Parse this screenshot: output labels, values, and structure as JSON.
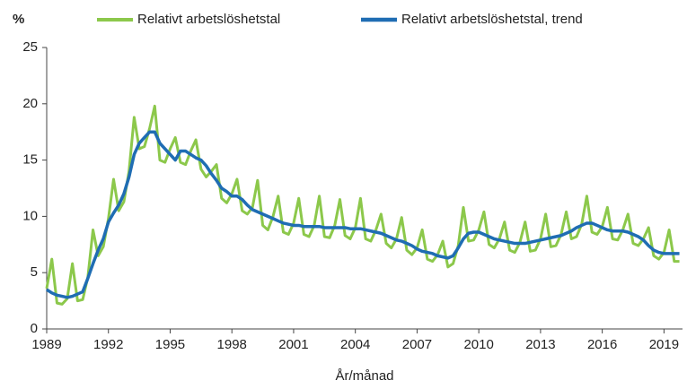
{
  "chart_data": {
    "type": "line",
    "y_label": "%",
    "x_label": "År/månad",
    "x": [
      1989,
      1989.25,
      1989.5,
      1989.75,
      1990,
      1990.25,
      1990.5,
      1990.75,
      1991,
      1991.25,
      1991.5,
      1991.75,
      1992,
      1992.25,
      1992.5,
      1992.75,
      1993,
      1993.25,
      1993.5,
      1993.75,
      1994,
      1994.25,
      1994.5,
      1994.75,
      1995,
      1995.25,
      1995.5,
      1995.75,
      1996,
      1996.25,
      1996.5,
      1996.75,
      1997,
      1997.25,
      1997.5,
      1997.75,
      1998,
      1998.25,
      1998.5,
      1998.75,
      1999,
      1999.25,
      1999.5,
      1999.75,
      2000,
      2000.25,
      2000.5,
      2000.75,
      2001,
      2001.25,
      2001.5,
      2001.75,
      2002,
      2002.25,
      2002.5,
      2002.75,
      2003,
      2003.25,
      2003.5,
      2003.75,
      2004,
      2004.25,
      2004.5,
      2004.75,
      2005,
      2005.25,
      2005.5,
      2005.75,
      2006,
      2006.25,
      2006.5,
      2006.75,
      2007,
      2007.25,
      2007.5,
      2007.75,
      2008,
      2008.25,
      2008.5,
      2008.75,
      2009,
      2009.25,
      2009.5,
      2009.75,
      2010,
      2010.25,
      2010.5,
      2010.75,
      2011,
      2011.25,
      2011.5,
      2011.75,
      2012,
      2012.25,
      2012.5,
      2012.75,
      2013,
      2013.25,
      2013.5,
      2013.75,
      2014,
      2014.25,
      2014.5,
      2014.75,
      2015,
      2015.25,
      2015.5,
      2015.75,
      2016,
      2016.25,
      2016.5,
      2016.75,
      2017,
      2017.25,
      2017.5,
      2017.75,
      2018,
      2018.25,
      2018.5,
      2018.75,
      2019,
      2019.25,
      2019.5,
      2019.75
    ],
    "series": [
      {
        "name": "Relativt arbetslöshetstal",
        "color": "#8cc84b",
        "values": [
          3.6,
          6.2,
          2.3,
          2.2,
          2.7,
          5.8,
          2.5,
          2.6,
          4.6,
          8.8,
          6.5,
          7.3,
          9.8,
          13.3,
          10.5,
          11.3,
          14.0,
          18.8,
          16.0,
          16.2,
          17.8,
          19.8,
          15.0,
          14.8,
          16.0,
          17.0,
          14.8,
          14.6,
          15.8,
          16.8,
          14.2,
          13.5,
          14.0,
          14.6,
          11.6,
          11.2,
          12.0,
          13.3,
          10.5,
          10.2,
          10.8,
          13.2,
          9.2,
          8.8,
          10.0,
          11.8,
          8.6,
          8.4,
          9.4,
          11.6,
          8.4,
          8.2,
          9.2,
          11.8,
          8.2,
          8.1,
          9.2,
          11.5,
          8.3,
          8.0,
          9.0,
          11.6,
          8.0,
          7.8,
          8.8,
          10.2,
          7.6,
          7.2,
          8.0,
          9.9,
          7.0,
          6.6,
          7.2,
          8.8,
          6.2,
          6.0,
          6.6,
          7.8,
          5.5,
          5.8,
          7.4,
          10.8,
          7.8,
          7.9,
          8.8,
          10.4,
          7.5,
          7.2,
          8.0,
          9.5,
          7.0,
          6.8,
          7.7,
          9.5,
          6.9,
          7.0,
          8.0,
          10.2,
          7.3,
          7.4,
          8.4,
          10.4,
          8.0,
          8.2,
          9.3,
          11.8,
          8.6,
          8.4,
          9.1,
          10.8,
          8.0,
          7.9,
          8.8,
          10.2,
          7.6,
          7.4,
          8.0,
          9.0,
          6.5,
          6.2,
          6.8,
          8.8,
          6.0,
          6.0
        ]
      },
      {
        "name": "Relativt arbetslöshetstal, trend",
        "color": "#1f6db3",
        "values": [
          3.5,
          3.2,
          3.0,
          2.9,
          2.8,
          2.9,
          3.1,
          3.3,
          4.5,
          5.8,
          7.0,
          8.0,
          9.5,
          10.3,
          11.0,
          12.0,
          13.5,
          15.5,
          16.5,
          17.0,
          17.5,
          17.5,
          16.5,
          16.0,
          15.5,
          15.0,
          15.8,
          15.8,
          15.5,
          15.2,
          15.0,
          14.5,
          13.8,
          13.2,
          12.5,
          12.2,
          11.8,
          11.8,
          11.5,
          11.0,
          10.6,
          10.4,
          10.2,
          10.0,
          9.8,
          9.6,
          9.4,
          9.3,
          9.2,
          9.2,
          9.1,
          9.1,
          9.1,
          9.1,
          9.0,
          9.0,
          9.0,
          9.0,
          9.0,
          8.9,
          8.9,
          8.9,
          8.8,
          8.7,
          8.6,
          8.5,
          8.3,
          8.1,
          7.9,
          7.8,
          7.6,
          7.4,
          7.1,
          6.9,
          6.8,
          6.7,
          6.5,
          6.4,
          6.3,
          6.5,
          7.2,
          8.0,
          8.5,
          8.6,
          8.6,
          8.4,
          8.2,
          8.0,
          7.9,
          7.8,
          7.7,
          7.6,
          7.6,
          7.6,
          7.7,
          7.8,
          7.9,
          8.0,
          8.1,
          8.2,
          8.3,
          8.5,
          8.7,
          9.0,
          9.2,
          9.4,
          9.4,
          9.2,
          9.0,
          8.8,
          8.7,
          8.7,
          8.7,
          8.6,
          8.4,
          8.2,
          7.9,
          7.4,
          7.0,
          6.8,
          6.7,
          6.7,
          6.7,
          6.7
        ]
      }
    ],
    "xlim": [
      1989,
      2019.9
    ],
    "xticks": [
      1989,
      1992,
      1995,
      1998,
      2001,
      2004,
      2007,
      2010,
      2013,
      2016,
      2019
    ],
    "ylim": [
      0,
      25
    ],
    "yticks": [
      0,
      5,
      10,
      15,
      20,
      25
    ],
    "grid": false,
    "legend": "top"
  }
}
